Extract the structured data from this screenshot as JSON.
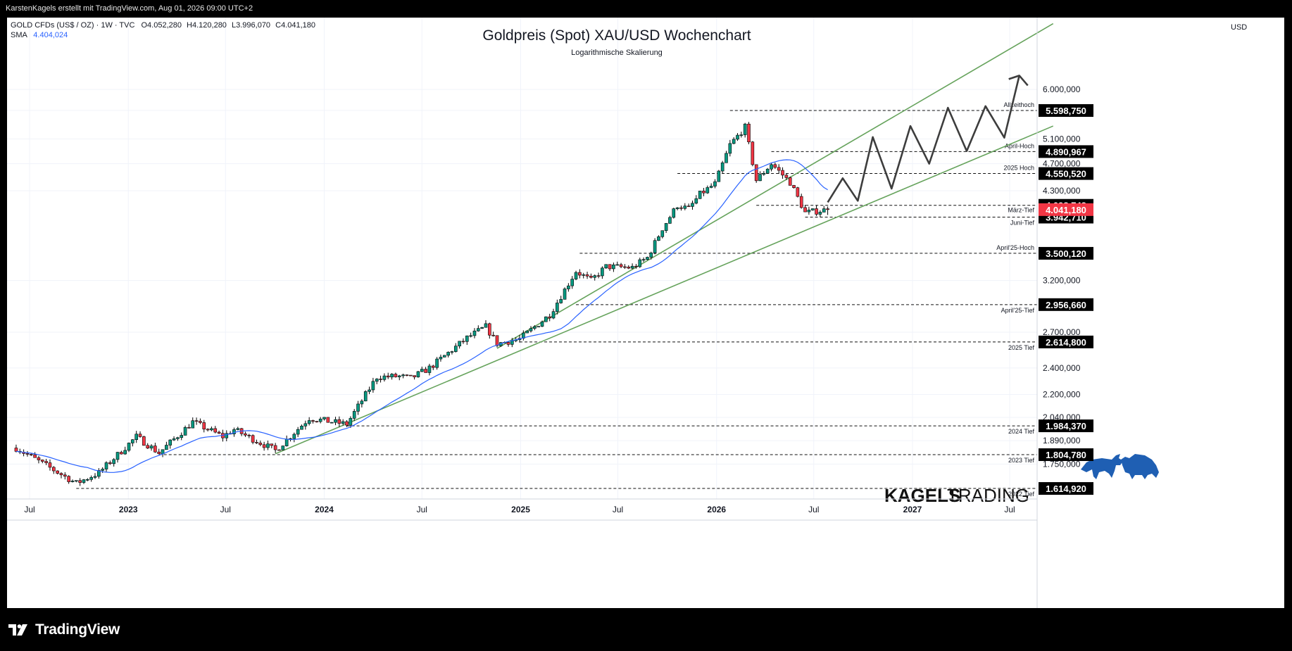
{
  "header": {
    "attribution": "KarstenKagels erstellt mit TradingView.com, Aug 01, 2026 09:00 UTC+2"
  },
  "footer": {
    "brand": "TradingView"
  },
  "chart_data": {
    "type": "candlestick",
    "title": "Goldpreis (Spot) XAU/USD Wochenchart",
    "subtitle": "Logarithmische Skalierung",
    "symbol_line": {
      "name": "GOLD CFDs (US$ / OZ) · 1W · TVC",
      "open": "O4.052,280",
      "high": "H4.120,280",
      "low": "L3.996,070",
      "close": "C4.041,180"
    },
    "sma_line": {
      "label": "SMA",
      "value": "4.404,024"
    },
    "currency": "USD",
    "y_scale": "log",
    "ylim": [
      1560,
      7600
    ],
    "x_ticks": [
      {
        "label": "Jul",
        "date": "2022-07-01"
      },
      {
        "label": "2023",
        "date": "2023-01-01",
        "bold": true
      },
      {
        "label": "Jul",
        "date": "2023-07-01"
      },
      {
        "label": "2024",
        "date": "2024-01-01",
        "bold": true
      },
      {
        "label": "Jul",
        "date": "2024-07-01"
      },
      {
        "label": "2025",
        "date": "2025-01-01",
        "bold": true
      },
      {
        "label": "Jul",
        "date": "2025-07-01"
      },
      {
        "label": "2026",
        "date": "2026-01-01",
        "bold": true
      },
      {
        "label": "Jul",
        "date": "2026-07-01"
      },
      {
        "label": "2027",
        "date": "2027-01-01",
        "bold": true
      },
      {
        "label": "Jul",
        "date": "2027-07-01"
      }
    ],
    "y_ticks": [
      {
        "label": "1.750,000",
        "value": 1750
      },
      {
        "label": "1.890,000",
        "value": 1890
      },
      {
        "label": "2.040,000",
        "value": 2040
      },
      {
        "label": "2.200,000",
        "value": 2200
      },
      {
        "label": "2.400,000",
        "value": 2400
      },
      {
        "label": "2.700,000",
        "value": 2700
      },
      {
        "label": "3.200,000",
        "value": 3200
      },
      {
        "label": "4.300,000",
        "value": 4300
      },
      {
        "label": "4.700,000",
        "value": 4700
      },
      {
        "label": "5.100,000",
        "value": 5100
      },
      {
        "label": "5.600,000",
        "value": 5600
      },
      {
        "label": "6.000,000",
        "value": 6000
      }
    ],
    "levels": [
      {
        "label": "Allzeithoch",
        "price": 5598.75,
        "value_label": "5.598,750",
        "start": "2026-01-26"
      },
      {
        "label": "April-Hoch",
        "price": 4890.967,
        "value_label": "4.890,967",
        "start": "2026-04-13"
      },
      {
        "label": "2025 Hoch",
        "price": 4550.52,
        "value_label": "4.550,520",
        "start": "2025-10-20"
      },
      {
        "label": "",
        "price": 4098.742,
        "value_label": "4.098,742",
        "start": "2026-03-16"
      },
      {
        "label": "März-Tief",
        "price": 4098.742,
        "value_label": "",
        "start": "2026-03-16",
        "label_only": true
      },
      {
        "label": "Juni-Tief",
        "price": 3942.71,
        "value_label": "3.942,710",
        "start": "2026-06-15"
      },
      {
        "label": "April'25-Hoch",
        "price": 3500.12,
        "value_label": "3.500,120",
        "start": "2025-04-21"
      },
      {
        "label": "April'25-Tief",
        "price": 2956.66,
        "value_label": "2.956,660",
        "start": "2025-04-14"
      },
      {
        "label": "2025 Tief",
        "price": 2614.8,
        "value_label": "2.614,800",
        "start": "2024-12-30"
      },
      {
        "label": "2024 Tief",
        "price": 1984.37,
        "value_label": "1.984,370",
        "start": "2024-02-12"
      },
      {
        "label": "2023 Tief",
        "price": 1804.78,
        "value_label": "1.804,780",
        "start": "2023-02-27"
      },
      {
        "label": "2022 Tief",
        "price": 1614.92,
        "value_label": "1.614,920",
        "start": "2022-09-26"
      }
    ],
    "current_price": {
      "value": 4041.18,
      "value_label": "4.041,180",
      "color": "#f23645"
    },
    "colors": {
      "up": "#089981",
      "down": "#f23645",
      "sma": "#2962ff",
      "trend": "#66a35c",
      "projection": "#3d3d3d",
      "grid": "#f0f3fa",
      "text": "#131722"
    },
    "sma_period": 20,
    "trendlines": [
      {
        "from": {
          "date": "2023-10-02",
          "price": 1810
        },
        "to": {
          "date": "2027-09-20",
          "price": 5320
        }
      },
      {
        "from": {
          "date": "2024-11-18",
          "price": 2560
        },
        "to": {
          "date": "2027-09-20",
          "price": 7450
        }
      }
    ],
    "projection": [
      {
        "date": "2026-07-27",
        "price": 4140
      },
      {
        "date": "2026-08-24",
        "price": 4480
      },
      {
        "date": "2026-09-21",
        "price": 4160
      },
      {
        "date": "2026-10-19",
        "price": 5130
      },
      {
        "date": "2026-11-23",
        "price": 4330
      },
      {
        "date": "2026-12-28",
        "price": 5320
      },
      {
        "date": "2027-02-01",
        "price": 4700
      },
      {
        "date": "2027-03-08",
        "price": 5650
      },
      {
        "date": "2027-04-12",
        "price": 4900
      },
      {
        "date": "2027-05-17",
        "price": 5680
      },
      {
        "date": "2027-06-21",
        "price": 5120
      },
      {
        "date": "2027-07-19",
        "price": 6280
      }
    ],
    "projection_arrow": {
      "date": "2027-07-19",
      "price": 6280,
      "tip_date": "2027-07-12",
      "tip_price": 6200
    },
    "watermark": {
      "brand_bold": "KAGELS",
      "brand_light": "TRADING"
    },
    "anchors": [
      {
        "date": "2022-06-06",
        "price": 1845
      },
      {
        "date": "2022-09-26",
        "price": 1643
      },
      {
        "date": "2022-11-07",
        "price": 1700
      },
      {
        "date": "2023-01-16",
        "price": 1915
      },
      {
        "date": "2023-02-27",
        "price": 1815
      },
      {
        "date": "2023-05-01",
        "price": 2010
      },
      {
        "date": "2023-06-26",
        "price": 1915
      },
      {
        "date": "2023-07-17",
        "price": 1960
      },
      {
        "date": "2023-10-02",
        "price": 1830
      },
      {
        "date": "2023-12-04",
        "price": 2035
      },
      {
        "date": "2024-02-12",
        "price": 1995
      },
      {
        "date": "2024-04-08",
        "price": 2330
      },
      {
        "date": "2024-05-20",
        "price": 2335
      },
      {
        "date": "2024-06-10",
        "price": 2320
      },
      {
        "date": "2024-07-15",
        "price": 2400
      },
      {
        "date": "2024-09-23",
        "price": 2650
      },
      {
        "date": "2024-10-28",
        "price": 2750
      },
      {
        "date": "2024-11-18",
        "price": 2600
      },
      {
        "date": "2024-12-30",
        "price": 2640
      },
      {
        "date": "2025-02-24",
        "price": 2860
      },
      {
        "date": "2025-04-14",
        "price": 3300
      },
      {
        "date": "2025-05-12",
        "price": 3200
      },
      {
        "date": "2025-06-09",
        "price": 3350
      },
      {
        "date": "2025-07-28",
        "price": 3340
      },
      {
        "date": "2025-08-25",
        "price": 3450
      },
      {
        "date": "2025-09-22",
        "price": 3800
      },
      {
        "date": "2025-10-20",
        "price": 4100
      },
      {
        "date": "2025-11-10",
        "price": 4050
      },
      {
        "date": "2025-12-01",
        "price": 4250
      },
      {
        "date": "2025-12-29",
        "price": 4400
      },
      {
        "date": "2026-01-26",
        "price": 5000
      },
      {
        "date": "2026-02-23",
        "price": 5300
      },
      {
        "date": "2026-03-16",
        "price": 4450
      },
      {
        "date": "2026-04-13",
        "price": 4700
      },
      {
        "date": "2026-05-18",
        "price": 4420
      },
      {
        "date": "2026-06-15",
        "price": 4000
      },
      {
        "date": "2026-07-27",
        "price": 4041
      }
    ]
  }
}
